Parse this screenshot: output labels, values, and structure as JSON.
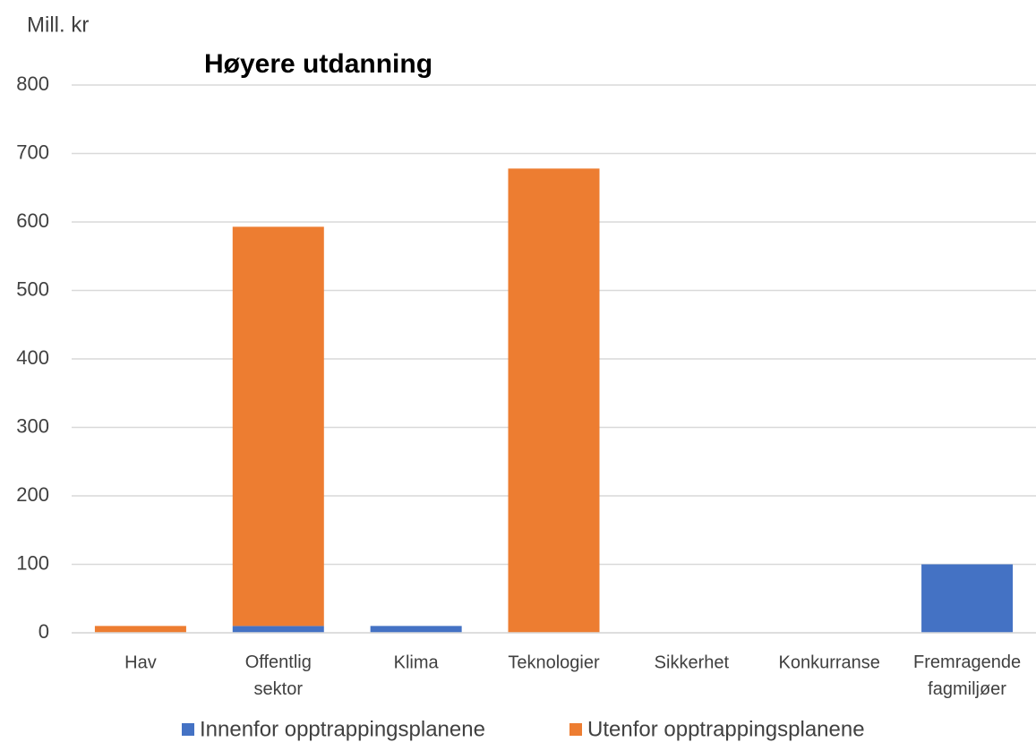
{
  "chart_data": {
    "type": "stacked_bar",
    "title": "Høyere utdanning",
    "y_label": "Mill. kr",
    "categories": [
      "Hav",
      "Offentlig sektor",
      "Klima",
      "Teknologier",
      "Sikkerhet",
      "Konkurranse",
      "Fremragende fagmiljøer"
    ],
    "series": [
      {
        "name": "Innenfor opptrappingsplanene",
        "color": "#4472c4",
        "values": [
          0,
          10,
          10,
          0,
          0,
          0,
          100
        ]
      },
      {
        "name": "Utenfor opptrappingsplanene",
        "color": "#ed7d31",
        "values": [
          10,
          583,
          0,
          678,
          0,
          0,
          0
        ]
      }
    ],
    "ylim": [
      0,
      800
    ],
    "yticks": [
      0,
      100,
      200,
      300,
      400,
      500,
      600,
      700,
      800
    ],
    "grid": true
  }
}
